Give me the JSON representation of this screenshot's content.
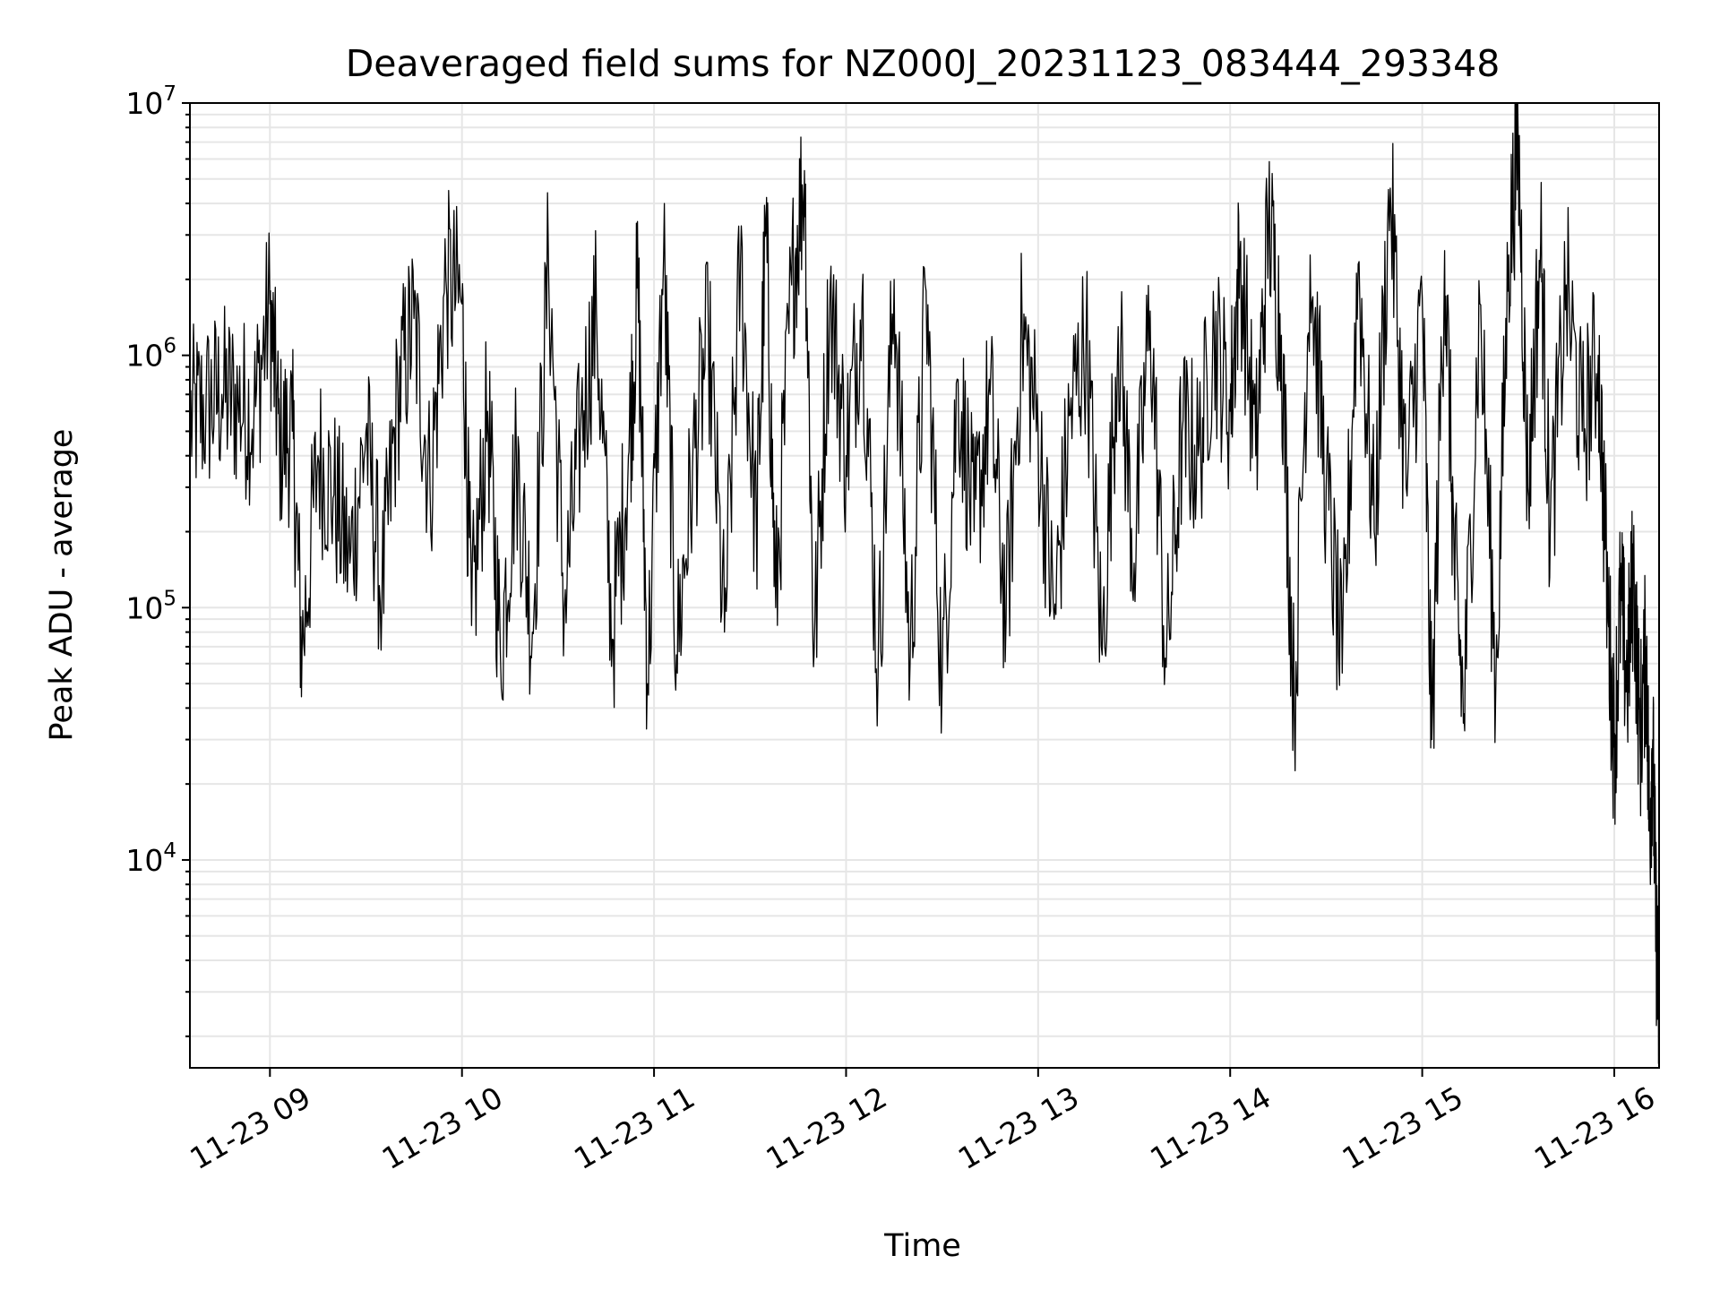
{
  "chart_data": {
    "type": "line",
    "title": "Deaveraged field sums for NZ000J_20231123_083444_293348",
    "xlabel": "Time",
    "ylabel": "Peak ADU - average",
    "x_ticks": [
      "11-23 09",
      "11-23 10",
      "11-23 11",
      "11-23 12",
      "11-23 13",
      "11-23 14",
      "11-23 15",
      "11-23 16"
    ],
    "x_range": [
      "2023-11-23 08:35",
      "2023-11-23 16:14"
    ],
    "y_scale": "log",
    "y_ticks": [
      {
        "value": 10000,
        "base": "10",
        "exp": "4"
      },
      {
        "value": 100000,
        "base": "10",
        "exp": "5"
      },
      {
        "value": 1000000,
        "base": "10",
        "exp": "6"
      },
      {
        "value": 10000000,
        "base": "10",
        "exp": "7"
      }
    ],
    "ylim": [
      1500,
      10000000
    ],
    "grid": true,
    "grid_color": "#e6e6e6",
    "line_color": "#000000",
    "series": [
      {
        "values": [
          [
            "2023-11-23 08:35",
            550000
          ],
          [
            "2023-11-23 08:40",
            620000
          ],
          [
            "2023-11-23 08:45",
            700000
          ],
          [
            "2023-11-23 08:50",
            650000
          ],
          [
            "2023-11-23 08:55",
            580000
          ],
          [
            "2023-11-23 09:00",
            1600000
          ],
          [
            "2023-11-23 09:03",
            450000
          ],
          [
            "2023-11-23 09:07",
            500000
          ],
          [
            "2023-11-23 09:10",
            65000
          ],
          [
            "2023-11-23 09:15",
            400000
          ],
          [
            "2023-11-23 09:20",
            280000
          ],
          [
            "2023-11-23 09:25",
            150000
          ],
          [
            "2023-11-23 09:30",
            500000
          ],
          [
            "2023-11-23 09:35",
            110000
          ],
          [
            "2023-11-23 09:40",
            700000
          ],
          [
            "2023-11-23 09:45",
            1400000
          ],
          [
            "2023-11-23 09:50",
            300000
          ],
          [
            "2023-11-23 09:55",
            2000000
          ],
          [
            "2023-11-23 10:00",
            1600000
          ],
          [
            "2023-11-23 10:03",
            85000
          ],
          [
            "2023-11-23 10:08",
            600000
          ],
          [
            "2023-11-23 10:12",
            65000
          ],
          [
            "2023-11-23 10:17",
            400000
          ],
          [
            "2023-11-23 10:22",
            80000
          ],
          [
            "2023-11-23 10:27",
            2400000
          ],
          [
            "2023-11-23 10:32",
            100000
          ],
          [
            "2023-11-23 10:37",
            500000
          ],
          [
            "2023-11-23 10:42",
            1500000
          ],
          [
            "2023-11-23 10:47",
            75000
          ],
          [
            "2023-11-23 10:52",
            400000
          ],
          [
            "2023-11-23 10:55",
            1900000
          ],
          [
            "2023-11-23 10:58",
            50000
          ],
          [
            "2023-11-23 11:03",
            2500000
          ],
          [
            "2023-11-23 11:07",
            65000
          ],
          [
            "2023-11-23 11:12",
            350000
          ],
          [
            "2023-11-23 11:17",
            1200000
          ],
          [
            "2023-11-23 11:22",
            80000
          ],
          [
            "2023-11-23 11:27",
            2300000
          ],
          [
            "2023-11-23 11:32",
            200000
          ],
          [
            "2023-11-23 11:35",
            3200000
          ],
          [
            "2023-11-23 11:38",
            100000
          ],
          [
            "2023-11-23 11:43",
            1900000
          ],
          [
            "2023-11-23 11:47",
            5400000
          ],
          [
            "2023-11-23 11:50",
            65000
          ],
          [
            "2023-11-23 11:55",
            1800000
          ],
          [
            "2023-11-23 12:00",
            400000
          ],
          [
            "2023-11-23 12:05",
            1700000
          ],
          [
            "2023-11-23 12:10",
            55000
          ],
          [
            "2023-11-23 12:15",
            2000000
          ],
          [
            "2023-11-23 12:20",
            60000
          ],
          [
            "2023-11-23 12:25",
            1800000
          ],
          [
            "2023-11-23 12:30",
            50000
          ],
          [
            "2023-11-23 12:35",
            800000
          ],
          [
            "2023-11-23 12:40",
            200000
          ],
          [
            "2023-11-23 12:45",
            700000
          ],
          [
            "2023-11-23 12:50",
            90000
          ],
          [
            "2023-11-23 12:55",
            1300000
          ],
          [
            "2023-11-23 13:00",
            500000
          ],
          [
            "2023-11-23 13:05",
            90000
          ],
          [
            "2023-11-23 13:10",
            580000
          ],
          [
            "2023-11-23 13:15",
            1200000
          ],
          [
            "2023-11-23 13:20",
            65000
          ],
          [
            "2023-11-23 13:25",
            1300000
          ],
          [
            "2023-11-23 13:30",
            150000
          ],
          [
            "2023-11-23 13:35",
            1500000
          ],
          [
            "2023-11-23 13:40",
            58000
          ],
          [
            "2023-11-23 13:45",
            500000
          ],
          [
            "2023-11-23 13:50",
            400000
          ],
          [
            "2023-11-23 13:55",
            1200000
          ],
          [
            "2023-11-23 14:00",
            600000
          ],
          [
            "2023-11-23 14:03",
            2500000
          ],
          [
            "2023-11-23 14:08",
            400000
          ],
          [
            "2023-11-23 14:12",
            3500000
          ],
          [
            "2023-11-23 14:16",
            1200000
          ],
          [
            "2023-11-23 14:20",
            40000
          ],
          [
            "2023-11-23 14:25",
            2500000
          ],
          [
            "2023-11-23 14:30",
            300000
          ],
          [
            "2023-11-23 14:35",
            55000
          ],
          [
            "2023-11-23 14:40",
            2300000
          ],
          [
            "2023-11-23 14:45",
            200000
          ],
          [
            "2023-11-23 14:50",
            4600000
          ],
          [
            "2023-11-23 14:55",
            300000
          ],
          [
            "2023-11-23 15:00",
            1700000
          ],
          [
            "2023-11-23 15:03",
            30000
          ],
          [
            "2023-11-23 15:07",
            2600000
          ],
          [
            "2023-11-23 15:10",
            150000
          ],
          [
            "2023-11-23 15:13",
            38000
          ],
          [
            "2023-11-23 15:18",
            1600000
          ],
          [
            "2023-11-23 15:23",
            50000
          ],
          [
            "2023-11-23 15:27",
            2500000
          ],
          [
            "2023-11-23 15:30",
            7000000
          ],
          [
            "2023-11-23 15:33",
            300000
          ],
          [
            "2023-11-23 15:37",
            2800000
          ],
          [
            "2023-11-23 15:40",
            200000
          ],
          [
            "2023-11-23 15:45",
            1900000
          ],
          [
            "2023-11-23 15:50",
            500000
          ],
          [
            "2023-11-23 15:55",
            1000000
          ],
          [
            "2023-11-23 15:58",
            100000
          ],
          [
            "2023-11-23 16:00",
            28000
          ],
          [
            "2023-11-23 16:02",
            110000
          ],
          [
            "2023-11-23 16:04",
            50000
          ],
          [
            "2023-11-23 16:06",
            140000
          ],
          [
            "2023-11-23 16:08",
            30000
          ],
          [
            "2023-11-23 16:10",
            70000
          ],
          [
            "2023-11-23 16:11",
            13000
          ],
          [
            "2023-11-23 16:12",
            30000
          ],
          [
            "2023-11-23 16:13",
            6000
          ],
          [
            "2023-11-23 16:14",
            2200
          ]
        ]
      }
    ]
  }
}
